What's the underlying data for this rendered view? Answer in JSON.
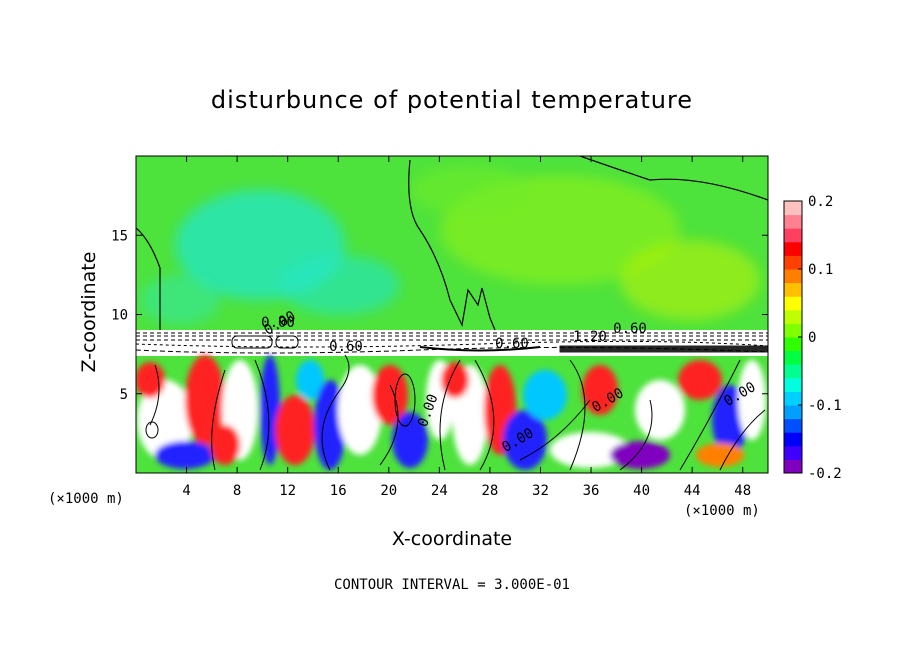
{
  "chart_data": {
    "type": "heatmap",
    "title": "disturbunce of potential temperature",
    "xlabel": "X-coordinate",
    "ylabel": "Z-coordinate",
    "x_unit": "(×1000 m)",
    "contour_interval_text": "CONTOUR INTERVAL = 3.000E-01",
    "x_ticks": [
      4,
      8,
      12,
      16,
      20,
      24,
      28,
      32,
      36,
      40,
      44,
      48
    ],
    "y_ticks": [
      5,
      10,
      15
    ],
    "xlim": [
      0,
      50
    ],
    "ylim": [
      0,
      20
    ],
    "colorbar": {
      "range": [
        -0.2,
        0.2
      ],
      "tick_labels": [
        "0.2",
        "0.1",
        "0",
        "-0.1",
        "-0.2"
      ],
      "tick_values": [
        0.2,
        0.1,
        0,
        -0.1,
        -0.2
      ],
      "colors": [
        "#7f00bf",
        "#3f00ff",
        "#0000ff",
        "#0050ff",
        "#00a0ff",
        "#00d0ff",
        "#00ffe0",
        "#00ff90",
        "#00ff40",
        "#30ff00",
        "#80ff00",
        "#c0ff00",
        "#ffff00",
        "#ffc000",
        "#ff8000",
        "#ff4000",
        "#ff0000",
        "#ff4060",
        "#ff8090",
        "#ffc0c0"
      ]
    },
    "contour_labels": [
      "0.00",
      "0.60",
      "0.60",
      "1.20",
      "0.60",
      "0.00",
      "0.00",
      "0.00",
      "0.00",
      "0.00"
    ],
    "colors": {
      "upper_background": "#4ee23c",
      "upper_cyan": "#22e6c8",
      "upper_lime": "#88f020",
      "white_band": "#ffffff",
      "lower_mix": [
        "#ff2020",
        "#2020ff",
        "#00c8ff",
        "#40e040",
        "#ffffff",
        "#ff8000",
        "#7f00bf"
      ]
    }
  }
}
